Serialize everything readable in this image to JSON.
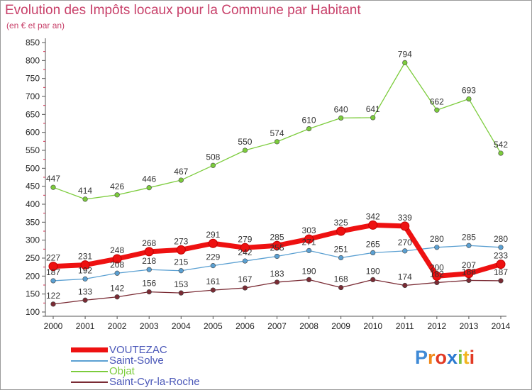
{
  "chart_data": {
    "type": "line",
    "title": "Evolution des Impôts locaux pour la Commune par Habitant",
    "subtitle": "(en € et par an)",
    "xlabel": "",
    "ylabel": "",
    "ylim": [
      100,
      850
    ],
    "yticks": [
      100,
      150,
      200,
      250,
      300,
      350,
      400,
      450,
      500,
      550,
      600,
      650,
      700,
      750,
      800,
      850
    ],
    "categories": [
      "2000",
      "2001",
      "2002",
      "2003",
      "2004",
      "2005",
      "2006",
      "2007",
      "2008",
      "2009",
      "2010",
      "2011",
      "2012",
      "2013",
      "2014"
    ],
    "grid": false,
    "legend_position": "bottom-left",
    "series": [
      {
        "name": "Objat",
        "color": "#7ccc3c",
        "values": [
          447,
          414,
          426,
          446,
          467,
          508,
          550,
          574,
          610,
          640,
          641,
          794,
          662,
          693,
          542
        ]
      },
      {
        "name": "Saint-Solve",
        "color": "#5ba0d2",
        "values": [
          187,
          192,
          208,
          218,
          215,
          229,
          242,
          255,
          271,
          251,
          265,
          270,
          280,
          285,
          280
        ]
      },
      {
        "name": "Saint-Cyr-la-Roche",
        "color": "#7a2b34",
        "values": [
          122,
          133,
          142,
          156,
          153,
          161,
          167,
          183,
          190,
          168,
          190,
          174,
          182,
          188,
          187
        ]
      },
      {
        "name": "VOUTEZAC",
        "color": "#ee1111",
        "values": [
          227,
          231,
          248,
          268,
          273,
          291,
          279,
          285,
          303,
          325,
          342,
          339,
          200,
          207,
          233
        ]
      }
    ],
    "legend_order": [
      "VOUTEZAC",
      "Saint-Solve",
      "Objat",
      "Saint-Cyr-la-Roche"
    ]
  },
  "logo": {
    "letters": [
      "P",
      "r",
      "o",
      "x",
      "i",
      "t",
      "i"
    ],
    "colors": [
      "#3f8ad6",
      "#f08a1c",
      "#e23a24",
      "#2b7ad0",
      "#7cc242",
      "#f2b51f",
      "#e23a24"
    ]
  }
}
